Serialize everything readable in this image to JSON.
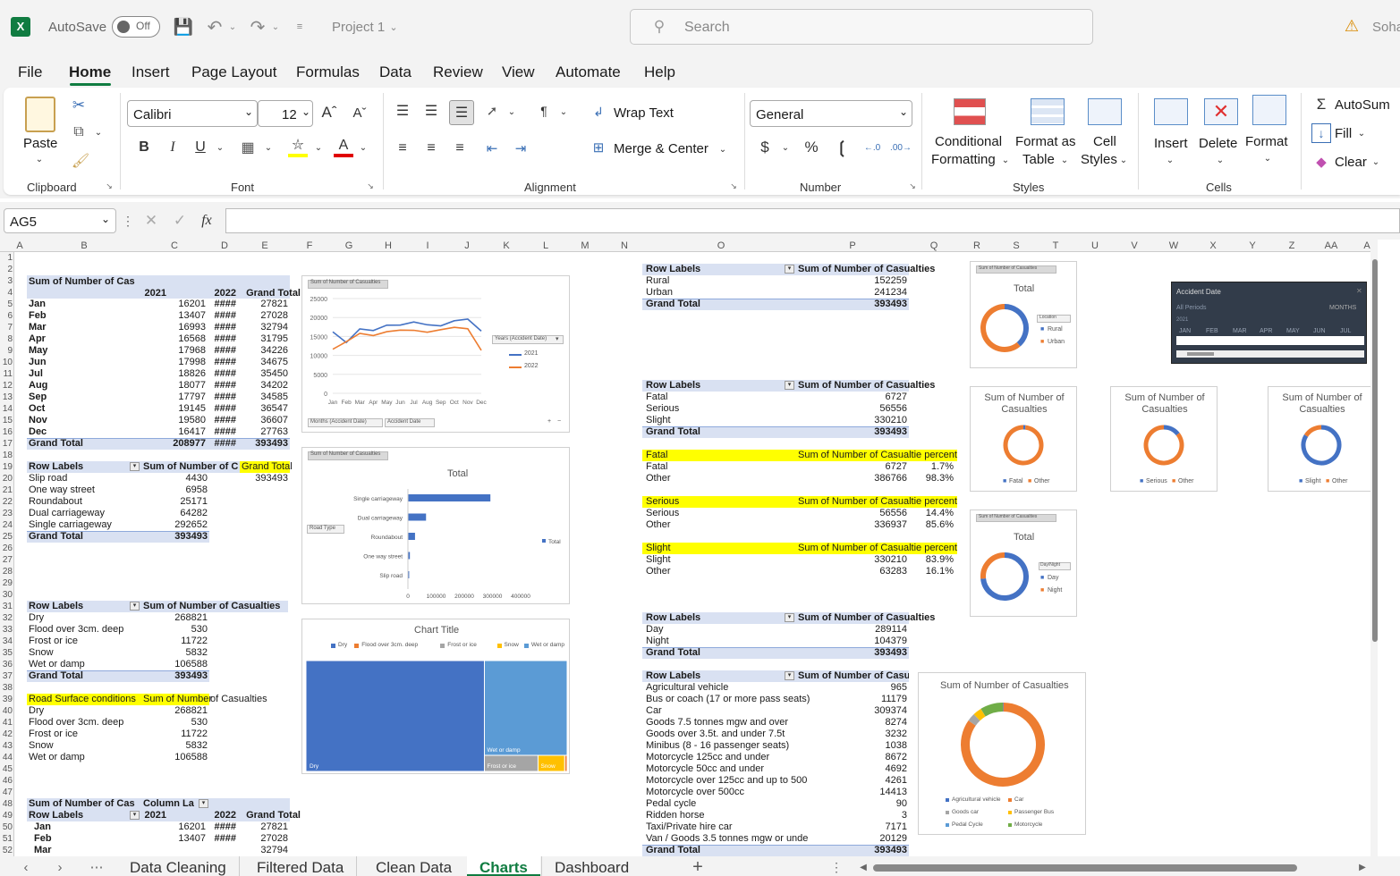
{
  "titlebar": {
    "autosave": "AutoSave",
    "toggle": "Off",
    "doc": "Project 1",
    "search": "Search",
    "user": "Soha"
  },
  "menu": [
    "File",
    "Home",
    "Insert",
    "Page Layout",
    "Formulas",
    "Data",
    "Review",
    "View",
    "Automate",
    "Help"
  ],
  "ribbon": {
    "paste": "Paste",
    "clipboard": "Clipboard",
    "font_name": "Calibri",
    "font_size": "12",
    "font": "Font",
    "wrap": "Wrap Text",
    "merge": "Merge & Center",
    "alignment": "Alignment",
    "numfmt": "General",
    "number": "Number",
    "cond1": "Conditional",
    "cond2": "Formatting",
    "fat1": "Format as",
    "fat2": "Table",
    "cs1": "Cell",
    "cs2": "Styles",
    "styles": "Styles",
    "insert": "Insert",
    "delete": "Delete",
    "format": "Format",
    "cells": "Cells",
    "autosum": "AutoSum",
    "fill": "Fill",
    "clear": "Clear"
  },
  "namebox": "AG5",
  "columns": [
    "A",
    "B",
    "C",
    "D",
    "E",
    "F",
    "G",
    "H",
    "I",
    "J",
    "K",
    "L",
    "M",
    "N",
    "O",
    "P",
    "Q",
    "R",
    "S",
    "T",
    "U",
    "V",
    "W",
    "X",
    "Y",
    "Z",
    "AA",
    "A"
  ],
  "rows": [
    "1",
    "2",
    "3",
    "4",
    "5",
    "6",
    "7",
    "8",
    "9",
    "10",
    "11",
    "12",
    "13",
    "14",
    "15",
    "16",
    "17",
    "18",
    "19",
    "20",
    "21",
    "22",
    "23",
    "24",
    "25",
    "26",
    "27",
    "28",
    "29",
    "30",
    "31",
    "32",
    "33",
    "34",
    "35",
    "36",
    "37",
    "38",
    "39",
    "40",
    "41",
    "42",
    "43",
    "44",
    "45",
    "46",
    "47",
    "48",
    "49",
    "50",
    "51",
    "52"
  ],
  "pivot_month": {
    "title": "Sum of Number of Cas",
    "h2021": "2021",
    "h2022": "2022",
    "hgt": "Grand Total",
    "rows": [
      [
        "Jan",
        "16201",
        "####",
        "27821"
      ],
      [
        "Feb",
        "13407",
        "####",
        "27028"
      ],
      [
        "Mar",
        "16993",
        "####",
        "32794"
      ],
      [
        "Apr",
        "16568",
        "####",
        "31795"
      ],
      [
        "May",
        "17968",
        "####",
        "34226"
      ],
      [
        "Jun",
        "17998",
        "####",
        "34675"
      ],
      [
        "Jul",
        "18826",
        "####",
        "35450"
      ],
      [
        "Aug",
        "18077",
        "####",
        "34202"
      ],
      [
        "Sep",
        "17797",
        "####",
        "34585"
      ],
      [
        "Oct",
        "19145",
        "####",
        "36547"
      ],
      [
        "Nov",
        "19580",
        "####",
        "36607"
      ],
      [
        "Dec",
        "16417",
        "####",
        "27763"
      ]
    ],
    "total": [
      "Grand Total",
      "208977",
      "####",
      "393493"
    ]
  },
  "pivot_road": {
    "h1": "Row Labels",
    "h2": "Sum of Number of C",
    "h3": "Grand Total",
    "v3": "393493",
    "rows": [
      [
        "Slip road",
        "4430"
      ],
      [
        "One way street",
        "6958"
      ],
      [
        "Roundabout",
        "25171"
      ],
      [
        "Dual carriageway",
        "64282"
      ],
      [
        "Single carriageway",
        "292652"
      ]
    ],
    "total": [
      "Grand Total",
      "393493"
    ]
  },
  "pivot_surface": {
    "h1": "Row Labels",
    "h2": "Sum of Number of Casualties",
    "rows": [
      [
        "Dry",
        "268821"
      ],
      [
        "Flood over 3cm. deep",
        "530"
      ],
      [
        "Frost or ice",
        "11722"
      ],
      [
        "Snow",
        "5832"
      ],
      [
        "Wet or damp",
        "106588"
      ]
    ],
    "total": [
      "Grand Total",
      "393493"
    ]
  },
  "table_surface": {
    "h1": "Road Surface conditions",
    "h2": "Sum of Number",
    "h3": "of Casualties",
    "rows": [
      [
        "Dry",
        "268821"
      ],
      [
        "Flood over 3cm. deep",
        "530"
      ],
      [
        "Frost or ice",
        "11722"
      ],
      [
        "Snow",
        "5832"
      ],
      [
        "Wet or damp",
        "106588"
      ]
    ]
  },
  "pivot_month2": {
    "title": "Sum of Number of Cas",
    "col": "Column La",
    "h1": "Row Labels",
    "h2021": "2021",
    "h2022": "2022",
    "hgt": "Grand Total",
    "rows": [
      [
        "Jan",
        "16201",
        "####",
        "27821"
      ],
      [
        "Feb",
        "13407",
        "####",
        "27028"
      ],
      [
        "Mar",
        "",
        "",
        " 32794"
      ]
    ]
  },
  "pivot_location": {
    "h1": "Row Labels",
    "h2": "Sum of Number of Casualties",
    "rows": [
      [
        "Rural",
        "152259"
      ],
      [
        "Urban",
        "241234"
      ]
    ],
    "total": [
      "Grand Total",
      "393493"
    ]
  },
  "pivot_severity": {
    "h1": "Row Labels",
    "h2": "Sum of Number of Casualties",
    "rows": [
      [
        "Fatal",
        "6727"
      ],
      [
        "Serious",
        "56556"
      ],
      [
        "Slight",
        "330210"
      ]
    ],
    "total": [
      "Grand Total",
      "393493"
    ]
  },
  "sev_fatal": {
    "h1": "Fatal",
    "h2": "Sum of Number of Casualtie percent",
    "rows": [
      [
        "Fatal",
        "6727",
        "1.7%"
      ],
      [
        "Other",
        "386766",
        "98.3%"
      ]
    ]
  },
  "sev_serious": {
    "h1": "Serious",
    "h2": "Sum of Number of Casualtie percent",
    "rows": [
      [
        "Serious",
        "56556",
        "14.4%"
      ],
      [
        "Other",
        "336937",
        "85.6%"
      ]
    ]
  },
  "sev_slight": {
    "h1": "Slight",
    "h2": "Sum of Number of Casualtie percent",
    "rows": [
      [
        "Slight",
        "330210",
        "83.9%"
      ],
      [
        "Other",
        "63283",
        "16.1%"
      ]
    ]
  },
  "pivot_daynight": {
    "h1": "Row Labels",
    "h2": "Sum of Number of Casualties",
    "rows": [
      [
        "Day",
        "289114"
      ],
      [
        "Night",
        "104379"
      ]
    ],
    "total": [
      "Grand Total",
      "393493"
    ]
  },
  "pivot_vehicle": {
    "h1": "Row Labels",
    "h2": "Sum of Number of Casua",
    "rows": [
      [
        "Agricultural vehicle",
        "965"
      ],
      [
        "Bus or coach (17 or more pass seats)",
        "11179"
      ],
      [
        "Car",
        "309374"
      ],
      [
        "Goods 7.5 tonnes mgw and over",
        "8274"
      ],
      [
        "Goods over 3.5t. and under 7.5t",
        "3232"
      ],
      [
        "Minibus (8 - 16 passenger seats)",
        "1038"
      ],
      [
        "Motorcycle 125cc and under",
        "8672"
      ],
      [
        "Motorcycle 50cc and under",
        "4692"
      ],
      [
        "Motorcycle over 125cc and up to 500",
        "4261"
      ],
      [
        "Motorcycle over 500cc",
        "14413"
      ],
      [
        "Pedal cycle",
        "90"
      ],
      [
        "Ridden horse",
        "3"
      ],
      [
        "Taxi/Private hire car",
        "7171"
      ],
      [
        "Van / Goods 3.5 tonnes mgw or unde",
        "20129"
      ]
    ],
    "total": [
      "Grand Total",
      "393493"
    ]
  },
  "line_chart": {
    "tag": "Sum of Number of Casualties",
    "btn1": "Months (Accident Date)",
    "btn2": "Accident Date",
    "legend_btn": "Years (Accident Date)"
  },
  "bar_chart": {
    "tag": "Sum of Number of Casualties",
    "title": "Total",
    "btn": "Road Type"
  },
  "treemap": {
    "title": "Chart Title",
    "legend": [
      "Dry",
      "Flood over 3cm. deep",
      "Frost or ice",
      "Snow",
      "Wet or damp"
    ],
    "labels": [
      "Dry",
      "Wet or damp",
      "Frost or ice",
      "Snow"
    ]
  },
  "donut_loc": {
    "tag": "Sum of Number of Casualties",
    "title": "Total",
    "btn": "Location",
    "legend": [
      "Rural",
      "Urban"
    ]
  },
  "donut_fatal": {
    "title": "Sum of Number of Casualties",
    "legend": [
      "Fatal",
      "Other"
    ]
  },
  "donut_serious": {
    "title": "Sum of Number of Casualties",
    "legend": [
      "Serious",
      "Other"
    ]
  },
  "donut_slight": {
    "title": "Sum of Number of Casualties",
    "legend": [
      "Slight",
      "Other"
    ]
  },
  "donut_day": {
    "tag": "Sum of Number of Casualties",
    "title": "Total",
    "btn": "Day/Night",
    "legend": [
      "Day",
      "Night"
    ]
  },
  "donut_vehicle": {
    "title": "Sum of Number of Casualties",
    "legend": [
      "Agricultural vehicle",
      "Car",
      "Goods car",
      "Passenger Bus",
      "Pedal Cycle",
      "Motorcycle"
    ]
  },
  "timeline": {
    "title": "Accident Date",
    "periods": "All Periods",
    "unit": "MONTHS",
    "year": "2021",
    "months": [
      "JAN",
      "FEB",
      "MAR",
      "APR",
      "MAY",
      "JUN",
      "JUL"
    ]
  },
  "sheet_tabs": [
    "Data Cleaning",
    "Filtered Data",
    "Clean Data",
    "Charts",
    "Dashboard"
  ],
  "chart_data": [
    {
      "type": "line",
      "title": "",
      "x": [
        "Jan",
        "Feb",
        "Mar",
        "Apr",
        "May",
        "Jun",
        "Jul",
        "Aug",
        "Sep",
        "Oct",
        "Nov",
        "Dec"
      ],
      "series": [
        {
          "name": "2021",
          "values": [
            16201,
            13407,
            16993,
            16568,
            17968,
            17998,
            18826,
            18077,
            17797,
            19145,
            19580,
            16417
          ]
        },
        {
          "name": "2022",
          "values": [
            11620,
            13621,
            15801,
            15227,
            16258,
            16677,
            16624,
            16125,
            16788,
            17402,
            17027,
            11346
          ]
        }
      ],
      "ylim": [
        0,
        25000
      ],
      "yticks": [
        0,
        5000,
        10000,
        15000,
        20000,
        25000
      ],
      "colors": [
        "#4472c4",
        "#ed7d31"
      ]
    },
    {
      "type": "bar",
      "title": "Total",
      "categories": [
        "Single carriageway",
        "Dual carriageway",
        "Roundabout",
        "One way street",
        "Slip road"
      ],
      "values": [
        292652,
        64282,
        25171,
        6958,
        4430
      ],
      "series_name": "Total",
      "xlim": [
        0,
        400000
      ],
      "xticks": [
        "0",
        "100000",
        "200000",
        "300000",
        "400000"
      ],
      "color": "#4472c4"
    },
    {
      "type": "treemap",
      "title": "Chart Title",
      "categories": [
        "Dry",
        "Flood over 3cm. deep",
        "Frost or ice",
        "Snow",
        "Wet or damp"
      ],
      "values": [
        268821,
        530,
        11722,
        5832,
        106588
      ],
      "colors": [
        "#4472c4",
        "#ed7d31",
        "#a5a5a5",
        "#ffc000",
        "#5b9bd5"
      ]
    },
    {
      "type": "pie",
      "title": "Total",
      "categories": [
        "Rural",
        "Urban"
      ],
      "values": [
        152259,
        241234
      ],
      "colors": [
        "#4472c4",
        "#ed7d31"
      ]
    },
    {
      "type": "pie",
      "title": "Sum of Number of Casualties",
      "categories": [
        "Fatal",
        "Other"
      ],
      "values": [
        6727,
        386766
      ],
      "colors": [
        "#4472c4",
        "#ed7d31"
      ]
    },
    {
      "type": "pie",
      "title": "Sum of Number of Casualties",
      "categories": [
        "Serious",
        "Other"
      ],
      "values": [
        56556,
        336937
      ],
      "colors": [
        "#4472c4",
        "#ed7d31"
      ]
    },
    {
      "type": "pie",
      "title": "Sum of Number of Casualties",
      "categories": [
        "Slight",
        "Other"
      ],
      "values": [
        330210,
        63283
      ],
      "colors": [
        "#4472c4",
        "#ed7d31"
      ]
    },
    {
      "type": "pie",
      "title": "Total",
      "categories": [
        "Day",
        "Night"
      ],
      "values": [
        289114,
        104379
      ],
      "colors": [
        "#4472c4",
        "#ed7d31"
      ]
    },
    {
      "type": "pie",
      "title": "Sum of Number of Casualties",
      "categories": [
        "Agricultural vehicle",
        "Car",
        "Goods car",
        "Passenger Bus",
        "Pedal Cycle",
        "Motorcycle"
      ],
      "values": [
        965,
        309374,
        11506,
        12217,
        90,
        32038
      ],
      "colors": [
        "#4472c4",
        "#ed7d31",
        "#a5a5a5",
        "#ffc000",
        "#5b9bd5",
        "#70ad47"
      ]
    }
  ]
}
